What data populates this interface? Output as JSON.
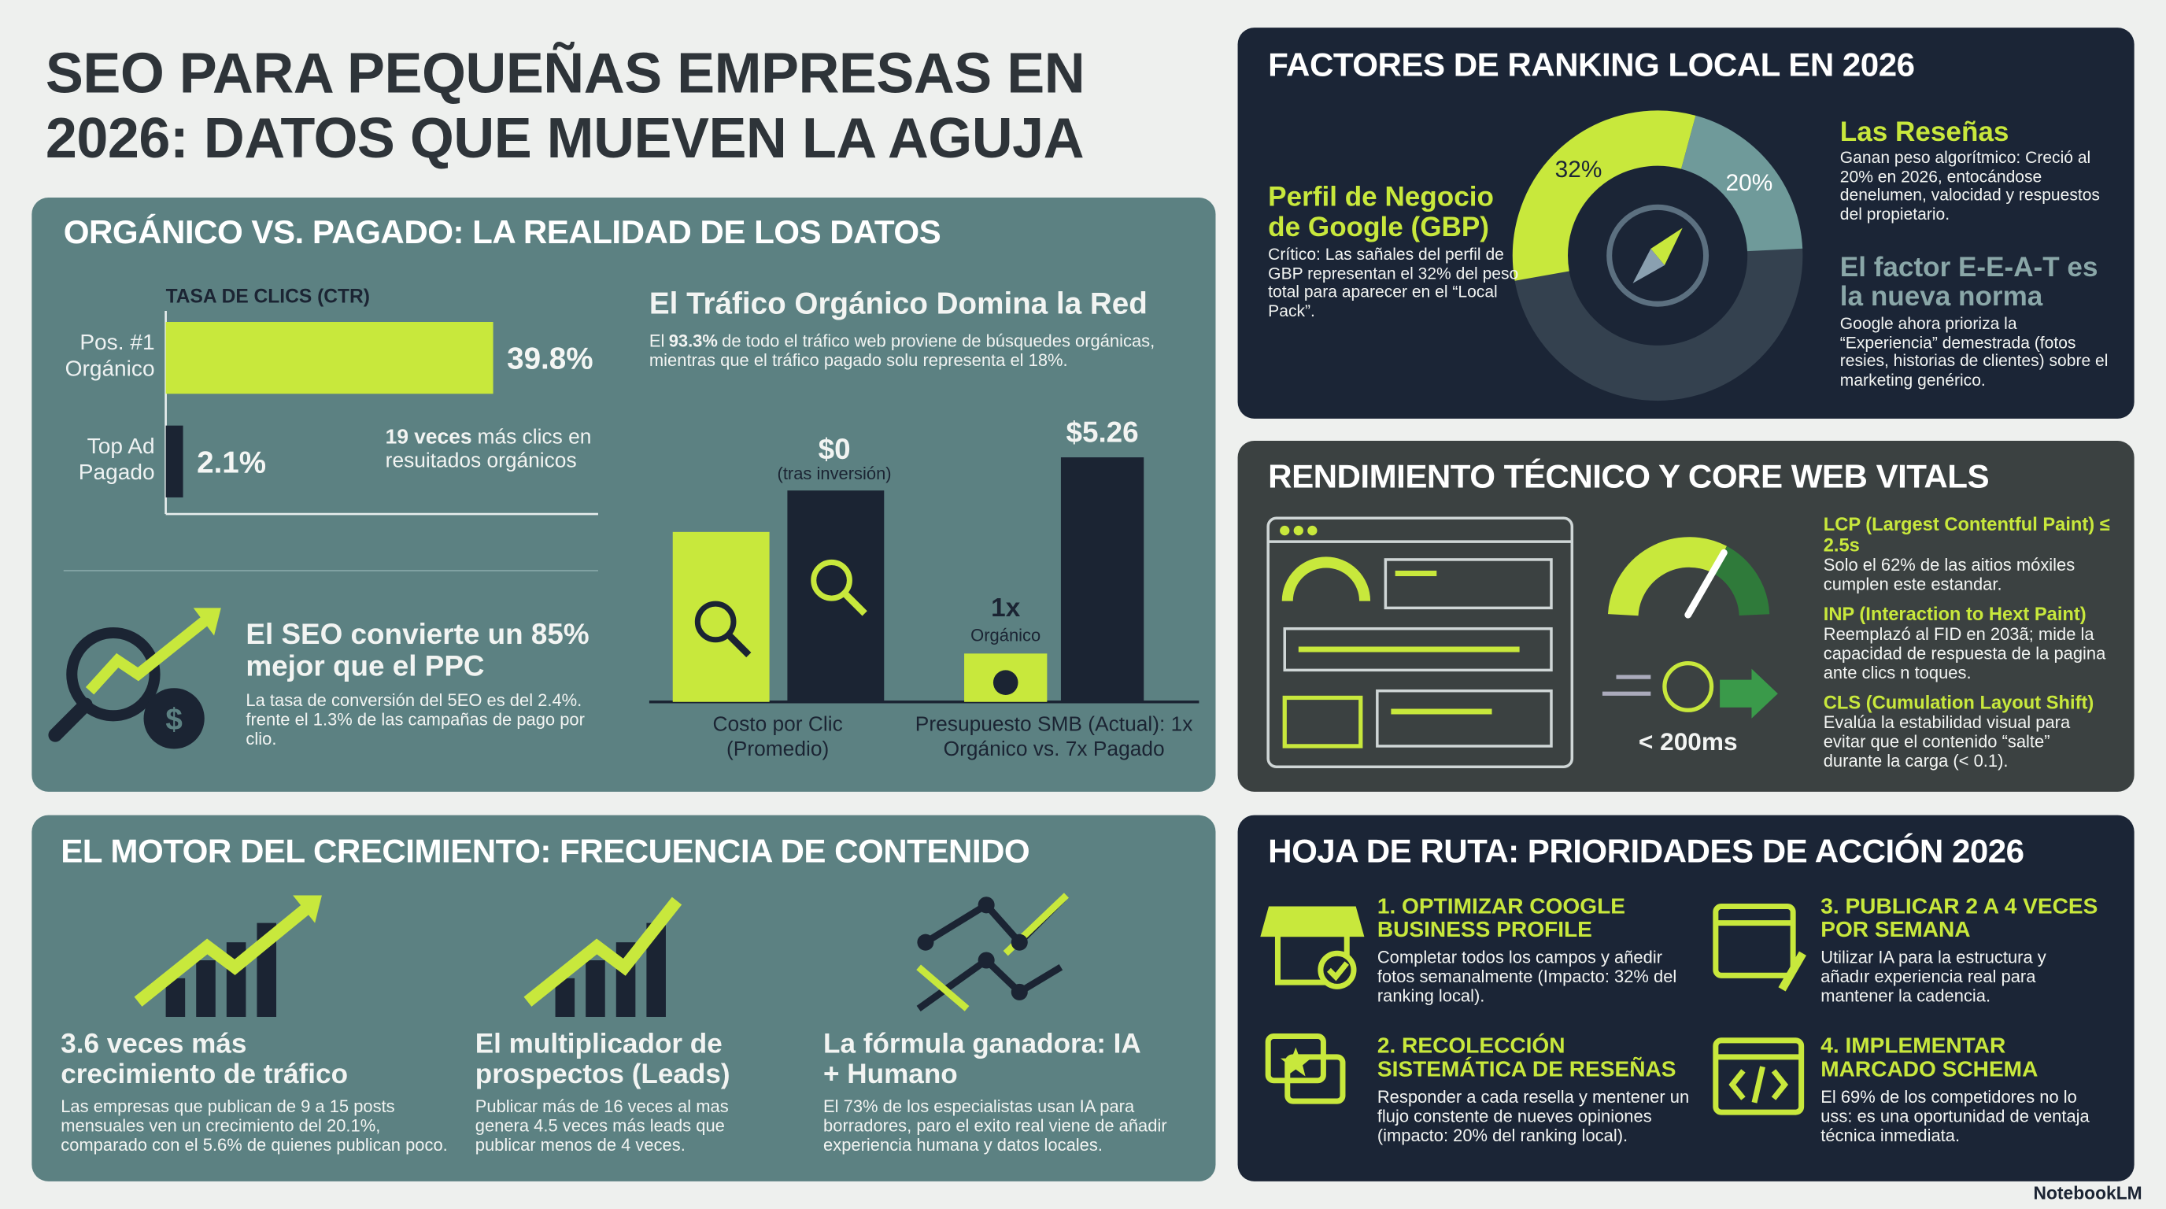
{
  "header": {
    "title": "SEO PARA PEQUEÑAS EMPRESAS EN 2026: DATOS QUE MUEVEN LA AGUJA"
  },
  "organic": {
    "heading": "ORGÁNICO VS. PAGADO: LA REALIDAD DE LOS DATOS",
    "ctr_note": {
      "bold": "19 veces",
      "text": "más clics en resuitados orgánicos"
    },
    "traffic": {
      "title": "El Tráfico Orgánico Domina la Red",
      "pre": "El",
      "bold": "93.3%",
      "text": "de todo el tráfico web proviene de búsquedes orgánicas, mientras que el tráfico pagado solu representa el 18%."
    },
    "conversion": {
      "title": "El SEO convierte un 85% mejor que el PPC",
      "text": "La tasa de conversión del 5EO es del 2.4%. frente el 1.3% de las campañas de pago por clio."
    },
    "cost": {
      "value": "$0",
      "note": "(tras inversión)",
      "label": "Costo por Clic (Promedio)"
    },
    "budget": {
      "paid": "$5.26",
      "organic": "1x",
      "organic_note": "Orgánico",
      "label": "Presupuesto SMB (Actual): 1x Orgánico vs. 7x Pagado"
    }
  },
  "chart_data": [
    {
      "type": "bar",
      "orientation": "horizontal",
      "title": "TASA DE CLICS (CTR)",
      "categories": [
        "Pos. #1 Orgánico",
        "Top Ad Pagado"
      ],
      "values": [
        39.8,
        2.1
      ],
      "value_labels": [
        "39.8%",
        "2.1%"
      ],
      "colors": [
        "#c8e83c",
        "#1b2433"
      ]
    },
    {
      "type": "pie",
      "values": [
        32,
        20
      ],
      "value_labels": [
        "32%",
        "20%"
      ],
      "colors": [
        "#c8e83c",
        "#6f9a9a"
      ]
    }
  ],
  "ranking": {
    "heading": "FACTORES DE RANKING LOCAL EN 2026",
    "gbp": {
      "title": "Perfil de Negocio de Google (GBP)",
      "text": "Crítico: Las sañales del perfil de GBP representan el 32% del peso total para aparecer en el “Local Pack”."
    },
    "reviews": {
      "title": "Las Reseñas",
      "text": "Ganan peso algorítmico: Creció al 20% en 2026, entocándose denelumen, valocidad y respuestos del propietario."
    },
    "eeat": {
      "title": "El factor E-E-A-T es la nueva norma",
      "text": "Google ahora prioriza la “Experiencia” demestrada (fotos resies, historias de clientes) sobre el marketing genérico."
    }
  },
  "technical": {
    "heading": "RENDIMIENTO TÉCNICO Y CORE WEB VITALS",
    "gauge_label": "< 200ms",
    "metrics": [
      {
        "title": "LCP (Largest Contentful Paint) ≤ 2.5s",
        "text": "Solo el 62% de las aitios móxiles cumplen este estandar."
      },
      {
        "title": "INP (Interaction to Hext Paint)",
        "text": "Reemplazó al FID en 203ã; mide la capacidad de respuesta de la pagina ante clics n toques."
      },
      {
        "title": "CLS (Cumulation Layout Shift)",
        "text": "Evalúa la estabilidad visual para evitar que el contenido “salte” durante la carga (< 0.1)."
      }
    ]
  },
  "content": {
    "heading": "EL MOTOR DEL CRECIMIENTO: FRECUENCIA DE CONTENIDO",
    "items": [
      {
        "title": "3.6 veces más crecimiento de tráfico",
        "text": "Las empresas que publican de 9 a 15 posts mensuales ven un crecimiento del 20.1%, comparado con el 5.6% de quienes publican poco."
      },
      {
        "title": "El multiplicador de prospectos (Leads)",
        "text": "Publicar más de 16 veces al mas genera 4.5 veces más leads que publicar menos de 4 veces."
      },
      {
        "title": "La fórmula ganadora: IA + Humano",
        "text": "El 73% de los especialistas usan IA para borradores, paro el exito real viene de añadir experiencia humana y datos locales."
      }
    ]
  },
  "roadmap": {
    "heading": "HOJA DE RUTA: PRIORIDADES DE ACCIÓN 2026",
    "items": [
      {
        "title": "1. OPTIMIZAR COOGLE BUSINESS PROFILE",
        "text": "Completar todos los campos y añedir fotos semanalmente (Impacto: 32% del ranking local)."
      },
      {
        "title": "3. PUBLICAR 2 A 4 VECES POR SEMANA",
        "text": "Utilizar IA para la estructura y añadır experiencia real para mantener la cadencia."
      },
      {
        "title": "2. RECOLECCIÓN SISTEMÁTICA DE RESEÑAS",
        "text": "Responder a cada resella y mentener un flujo constente de nueves opiniones (impacto: 20% del ranking local)."
      },
      {
        "title": "4. IMPLEMENTAR MARCADO SCHEMA",
        "text": "El 69% de los competidores no lo uss: es una oportunidad de ventaja técnica inmediata."
      }
    ]
  },
  "footer": {
    "brand": "NotebookLM"
  }
}
